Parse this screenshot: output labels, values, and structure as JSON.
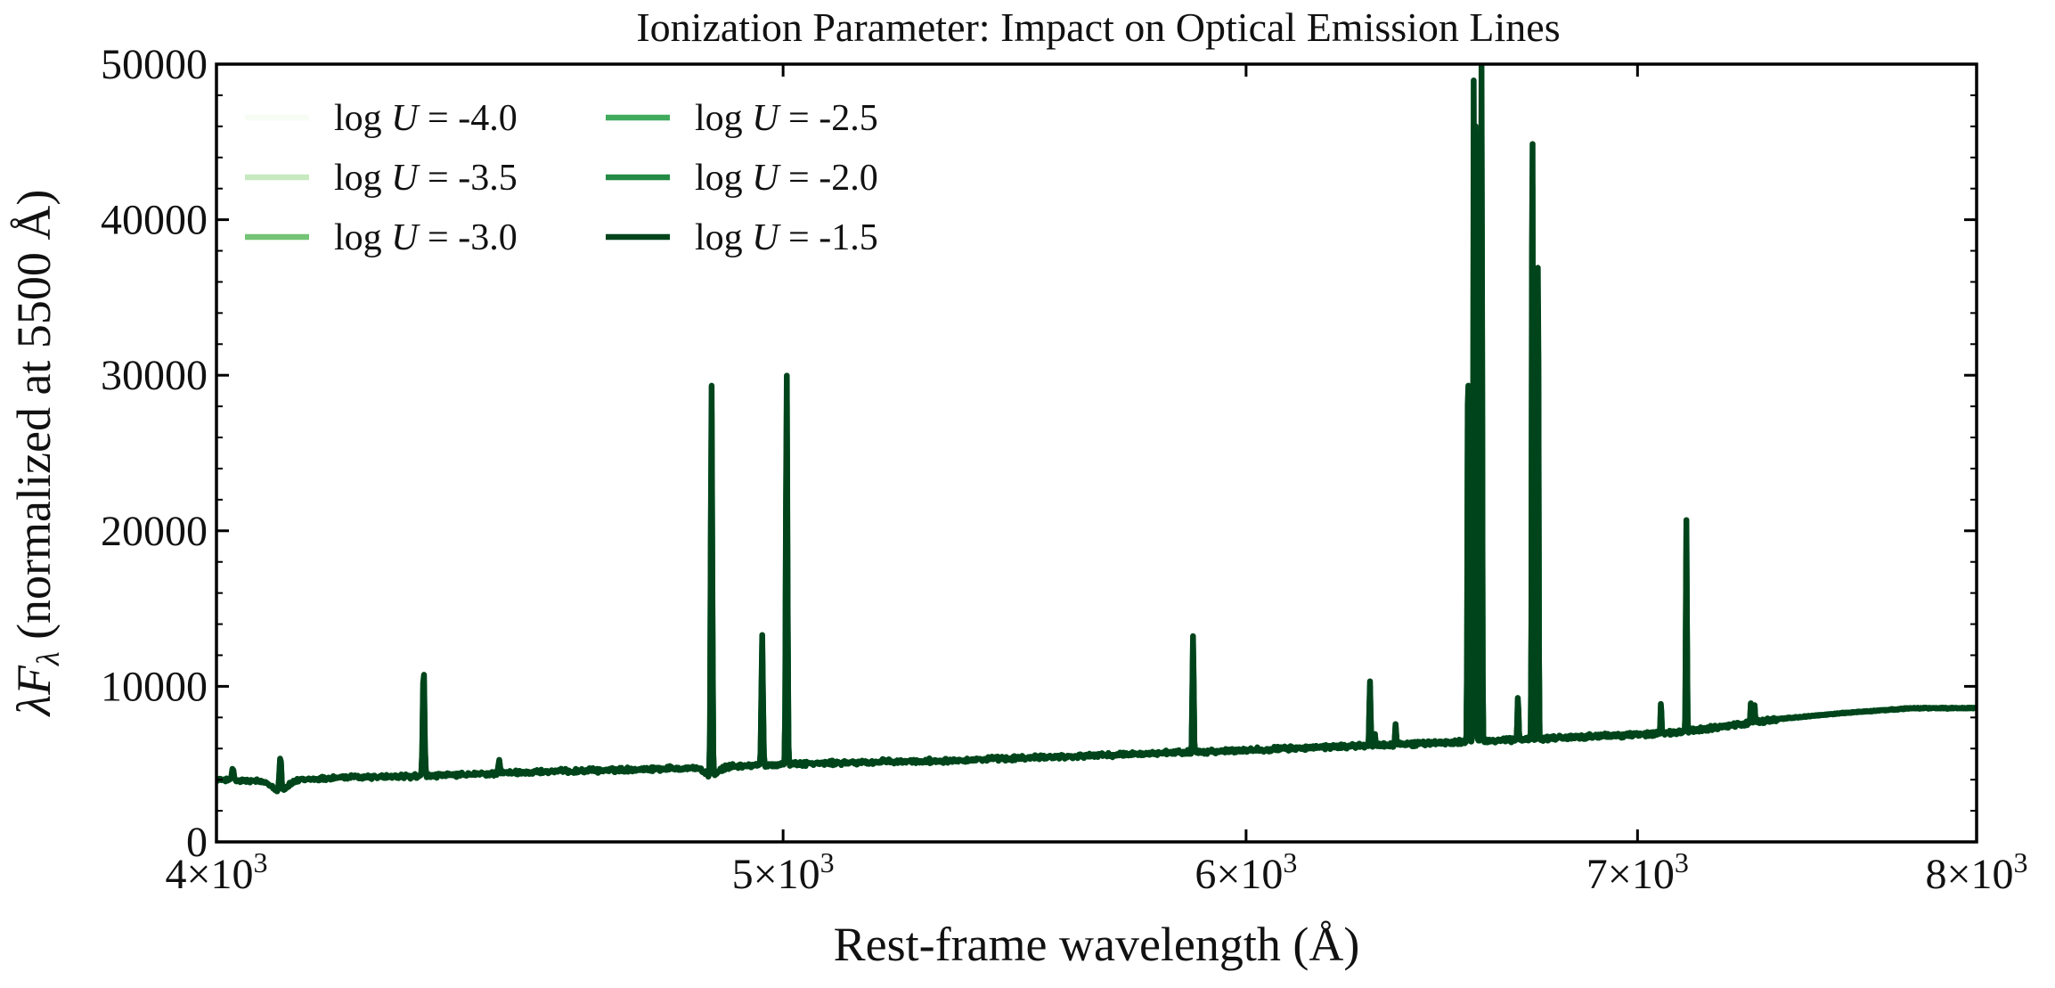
{
  "chart_data": {
    "type": "line",
    "title": "Ionization Parameter: Impact on Optical Emission Lines",
    "xlabel": "Rest-frame wavelength (Å)",
    "ylabel": "λF_λ (normalized at 5500 Å)",
    "ylabel_parts": {
      "lambda": "λ",
      "F": "F",
      "sub": "λ",
      "rest": " (normalized at 5500 Å)"
    },
    "x_scale": "log",
    "xlim": [
      4000,
      8000
    ],
    "ylim": [
      0,
      50000
    ],
    "x_ticks": [
      {
        "value": 4000,
        "mantissa": "4",
        "times": "×",
        "base": "10",
        "exp": "3"
      },
      {
        "value": 5000,
        "mantissa": "5",
        "times": "×",
        "base": "10",
        "exp": "3"
      },
      {
        "value": 6000,
        "mantissa": "6",
        "times": "×",
        "base": "10",
        "exp": "3"
      },
      {
        "value": 7000,
        "mantissa": "7",
        "times": "×",
        "base": "10",
        "exp": "3"
      },
      {
        "value": 8000,
        "mantissa": "8",
        "times": "×",
        "base": "10",
        "exp": "3"
      }
    ],
    "y_ticks": [
      {
        "value": 0,
        "label": "0"
      },
      {
        "value": 10000,
        "label": "10000"
      },
      {
        "value": 20000,
        "label": "20000"
      },
      {
        "value": 30000,
        "label": "30000"
      },
      {
        "value": 40000,
        "label": "40000"
      },
      {
        "value": 50000,
        "label": "50000"
      }
    ],
    "grid": false,
    "legend": {
      "placement": "top-left",
      "columns": 2
    },
    "legend_prefix": "log",
    "legend_var": "U",
    "legend_eq": " = ",
    "series": [
      {
        "name": "log U = -4.0",
        "value_label": "-4.0",
        "color": "#f7fcf5"
      },
      {
        "name": "log U = -3.5",
        "value_label": "-3.5",
        "color": "#c7e9c0"
      },
      {
        "name": "log U = -3.0",
        "value_label": "-3.0",
        "color": "#74c476"
      },
      {
        "name": "log U = -2.5",
        "value_label": "-2.5",
        "color": "#41ab5d"
      },
      {
        "name": "log U = -2.0",
        "value_label": "-2.0",
        "color": "#238b45"
      },
      {
        "name": "log U = -1.5",
        "value_label": "-1.5",
        "color": "#00441b"
      }
    ],
    "continuum": {
      "x": [
        4000,
        4060,
        4100,
        4200,
        4300,
        4400,
        4500,
        4700,
        4861,
        5000,
        5300,
        5600,
        5900,
        6200,
        6500,
        6800,
        7100,
        7300,
        7400,
        7600,
        7800,
        8000
      ],
      "y": [
        4000,
        3900,
        3900,
        4150,
        4200,
        4300,
        4450,
        4650,
        4800,
        5000,
        5200,
        5500,
        5800,
        6100,
        6400,
        6700,
        7000,
        7600,
        7900,
        8300,
        8600,
        8600
      ]
    },
    "emission_lines": [
      {
        "x": 3970,
        "peak": 4800
      },
      {
        "x": 4026,
        "peak": 4700
      },
      {
        "x": 4102,
        "peak": 6300
      },
      {
        "x": 4340,
        "peak": 11500
      },
      {
        "x": 4471,
        "peak": 5300
      },
      {
        "x": 4861,
        "peak": 30300
      },
      {
        "x": 4959,
        "peak": 13300
      },
      {
        "x": 5007,
        "peak": 30600
      },
      {
        "x": 5200,
        "peak": 5300
      },
      {
        "x": 5876,
        "peak": 13200
      },
      {
        "x": 6300,
        "peak": 10400
      },
      {
        "x": 6312,
        "peak": 7000
      },
      {
        "x": 6364,
        "peak": 7500
      },
      {
        "x": 6548,
        "peak": 32500
      },
      {
        "x": 6563,
        "peak": 50000
      },
      {
        "x": 6568,
        "peak": 50000
      },
      {
        "x": 6583,
        "peak": 50000
      },
      {
        "x": 6678,
        "peak": 9400
      },
      {
        "x": 6716,
        "peak": 47600
      },
      {
        "x": 6731,
        "peak": 38800
      },
      {
        "x": 7065,
        "peak": 8900
      },
      {
        "x": 7136,
        "peak": 20800
      },
      {
        "x": 7320,
        "peak": 9100
      },
      {
        "x": 7330,
        "peak": 8800
      }
    ]
  }
}
